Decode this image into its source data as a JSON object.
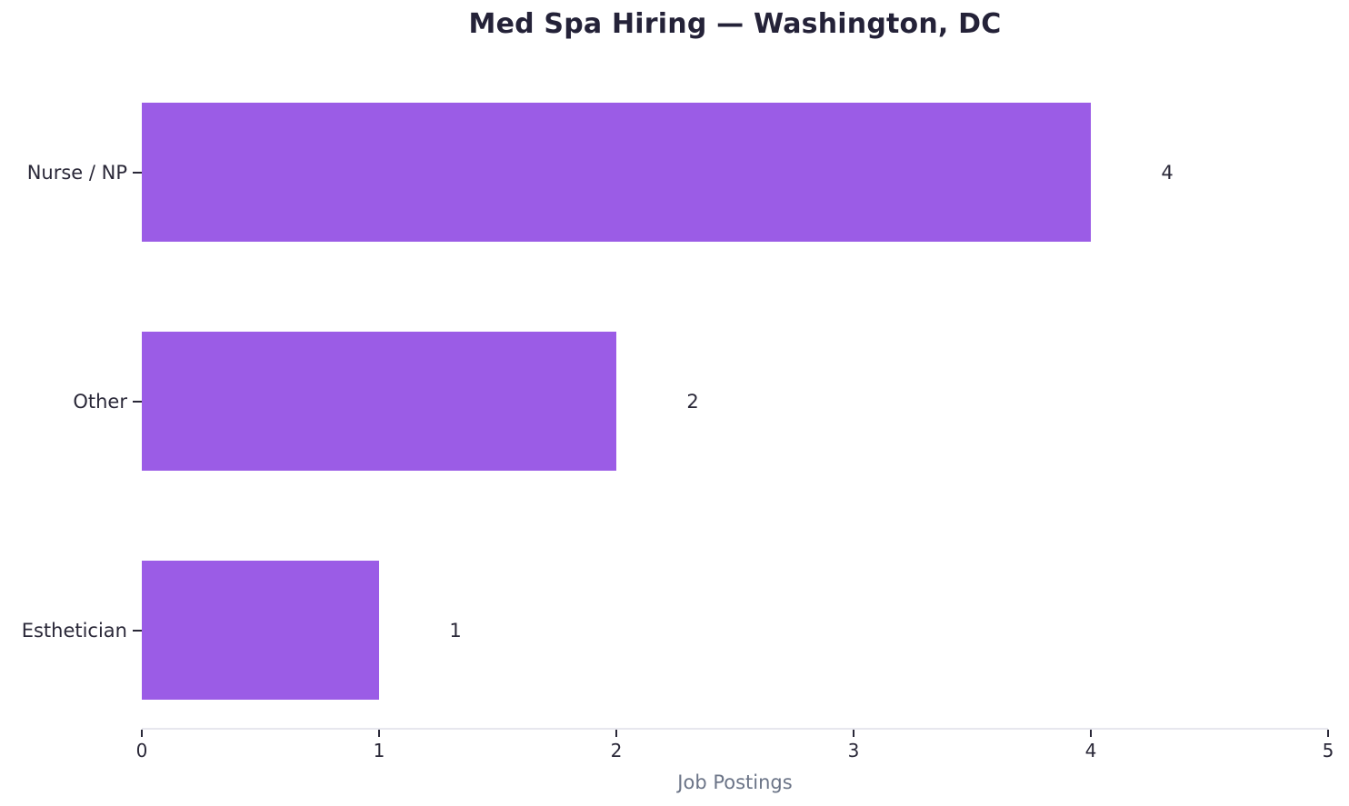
{
  "chart_data": {
    "type": "bar",
    "orientation": "horizontal",
    "title": "Med Spa Hiring — Washington, DC",
    "xlabel": "Job Postings",
    "ylabel": "",
    "categories": [
      "Nurse / NP",
      "Other",
      "Esthetician"
    ],
    "values": [
      4,
      2,
      1
    ],
    "value_labels": [
      "4",
      "2",
      "1"
    ],
    "xlim": [
      0,
      5
    ],
    "xticks": [
      0,
      1,
      2,
      3,
      4,
      5
    ],
    "grid": false,
    "legend": null
  },
  "colors": {
    "background": "#ffffff",
    "bar": "#9b5ce6",
    "title_text": "#242238",
    "tick_label_text": "#2a2838",
    "category_label_text": "#2a2838",
    "value_label_text": "#2a2838",
    "axis_label_text": "#6b7487",
    "spine": "#e7e7ee",
    "tick_mark": "#2a2838"
  }
}
